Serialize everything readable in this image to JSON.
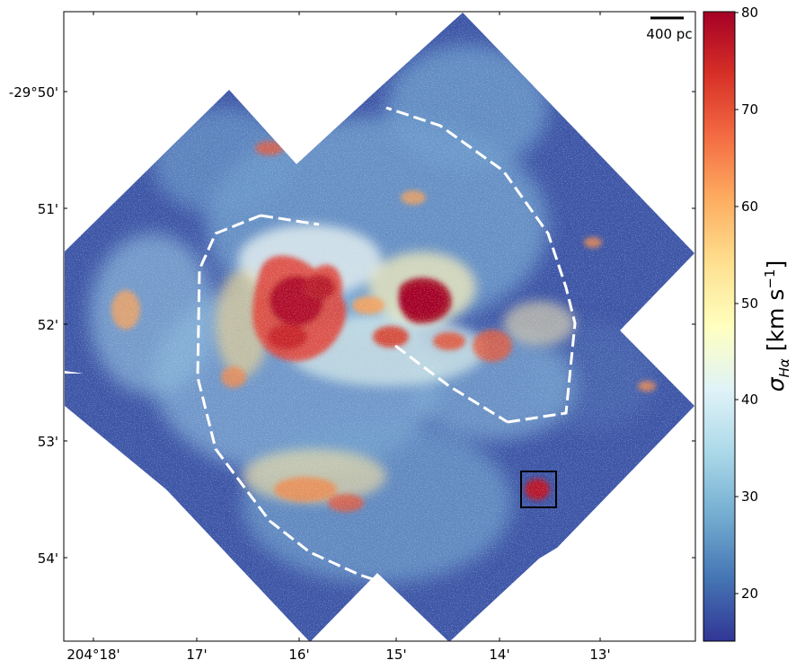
{
  "figure": {
    "scalebar_label": "400 pc",
    "dec_ticks": [
      "-29°50'",
      "51'",
      "52'",
      "53'",
      "54'"
    ],
    "ra_ticks": [
      "204°18'",
      "17'",
      "16'",
      "15'",
      "14'",
      "13'"
    ],
    "colorbar": {
      "label": "σ_Hα [km s⁻¹]",
      "symbol": "σ",
      "subscript": "Hα",
      "unit": "[km s",
      "unit_exp": "−1",
      "unit_close": "]",
      "ticks": [
        "80",
        "70",
        "60",
        "50",
        "40",
        "30",
        "20"
      ],
      "vmin": 15,
      "vmax": 80,
      "colormap": "RdYlBu_r",
      "colors": [
        "#313695",
        "#4575b4",
        "#74add1",
        "#abd9e9",
        "#e0f3f8",
        "#ffffbf",
        "#fee090",
        "#fdae61",
        "#f46d43",
        "#d73027",
        "#a50026"
      ]
    },
    "map_colors": {
      "background_low": "#3a4fa3",
      "mid": "#9cc8e0",
      "high": "#d73027",
      "peak": "#a50026"
    }
  }
}
